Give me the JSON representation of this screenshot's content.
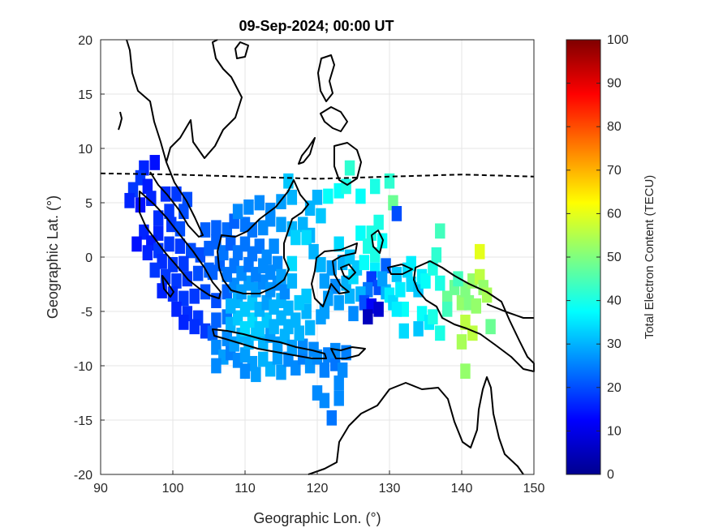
{
  "chart_data": {
    "type": "heatmap",
    "title": "09-Sep-2024; 00:00 UT",
    "xlabel": "Geographic Lon. (°)",
    "ylabel": "Geographic Lat. (°)",
    "xlim": [
      90,
      150
    ],
    "ylim": [
      -20,
      20
    ],
    "xticks": [
      "90",
      "100",
      "110",
      "120",
      "130",
      "140",
      "150"
    ],
    "yticks": [
      "20",
      "15",
      "10",
      "5",
      "0",
      "-5",
      "-10",
      "-15",
      "-20"
    ],
    "grid": true,
    "colorbar": {
      "label": "Total Electron Content (TECU)",
      "range": [
        0,
        100
      ],
      "colormap": "jet",
      "ticks": [
        "0",
        "10",
        "20",
        "30",
        "40",
        "50",
        "60",
        "70",
        "80",
        "90",
        "100"
      ]
    },
    "magnetic_equator_lat_approx": [
      [
        90,
        7.7
      ],
      [
        100,
        7.6
      ],
      [
        110,
        7.4
      ],
      [
        120,
        7.2
      ],
      [
        130,
        7.4
      ],
      [
        140,
        7.6
      ],
      [
        150,
        7.4
      ]
    ],
    "points": [
      [
        96,
        8.2,
        16
      ],
      [
        97.5,
        8.7,
        14
      ],
      [
        95.5,
        7.3,
        18
      ],
      [
        94.5,
        6.2,
        18
      ],
      [
        96.5,
        6.5,
        15
      ],
      [
        94,
        5.2,
        16
      ],
      [
        95.5,
        4.8,
        14
      ],
      [
        97,
        5.4,
        16
      ],
      [
        99,
        5.8,
        17
      ],
      [
        100.5,
        5.8,
        18
      ],
      [
        102,
        5.3,
        20
      ],
      [
        99.5,
        4.2,
        18
      ],
      [
        101.5,
        4.2,
        20
      ],
      [
        98,
        3.6,
        17
      ],
      [
        99.8,
        3.0,
        18
      ],
      [
        101,
        2.6,
        20
      ],
      [
        96,
        2.3,
        16
      ],
      [
        98,
        2.2,
        16
      ],
      [
        97,
        1.3,
        15
      ],
      [
        95,
        1.2,
        14
      ],
      [
        96.5,
        0.4,
        16
      ],
      [
        98,
        0.6,
        18
      ],
      [
        99.5,
        1.2,
        18
      ],
      [
        101,
        1.0,
        18
      ],
      [
        102.5,
        0.6,
        20
      ],
      [
        103.8,
        0.2,
        20
      ],
      [
        98.5,
        -0.4,
        17
      ],
      [
        100,
        -0.7,
        18
      ],
      [
        101.5,
        -0.6,
        18
      ],
      [
        97.5,
        -1.2,
        18
      ],
      [
        99,
        -1.8,
        18
      ],
      [
        100.5,
        -2.2,
        18
      ],
      [
        102,
        -2.0,
        18
      ],
      [
        103.5,
        -1.5,
        20
      ],
      [
        105,
        -1.2,
        22
      ],
      [
        98.5,
        -3.1,
        16
      ],
      [
        100,
        -3.4,
        17
      ],
      [
        101.5,
        -3.8,
        18
      ],
      [
        103,
        -3.6,
        18
      ],
      [
        104.5,
        -3.2,
        20
      ],
      [
        100.5,
        -4.8,
        16
      ],
      [
        102,
        -5.2,
        17
      ],
      [
        103.5,
        -5.6,
        18
      ],
      [
        101.5,
        -6.0,
        16
      ],
      [
        103,
        -6.4,
        17
      ],
      [
        104.5,
        -6.8,
        18
      ],
      [
        106,
        -4.0,
        20
      ],
      [
        107.5,
        -3.2,
        22
      ],
      [
        106,
        -5.8,
        22
      ],
      [
        107.5,
        -5.5,
        24
      ],
      [
        105.5,
        -7.0,
        22
      ],
      [
        106,
        -8.3,
        26
      ],
      [
        107,
        -9.2,
        28
      ],
      [
        106,
        -10,
        26
      ],
      [
        108,
        -8.8,
        25
      ],
      [
        109,
        -9.5,
        26
      ],
      [
        110,
        -9.0,
        28
      ],
      [
        111,
        -9.8,
        28
      ],
      [
        110,
        -10.5,
        26
      ],
      [
        111.5,
        -10.8,
        28
      ],
      [
        112.5,
        -9.4,
        30
      ],
      [
        113.5,
        -10.3,
        30
      ],
      [
        114.5,
        -9.2,
        28
      ],
      [
        115,
        -10.6,
        28
      ],
      [
        116,
        -9.4,
        26
      ],
      [
        117,
        -10.2,
        26
      ],
      [
        118,
        -9.2,
        25
      ],
      [
        119,
        -10.0,
        27
      ],
      [
        120,
        -9.2,
        26
      ],
      [
        121,
        -10.4,
        25
      ],
      [
        121.5,
        -9.0,
        25
      ],
      [
        122.5,
        -9.8,
        24
      ],
      [
        123.5,
        -10.4,
        26
      ],
      [
        122.5,
        -8.6,
        26
      ],
      [
        124,
        -8.8,
        25
      ],
      [
        118,
        -8.2,
        26
      ],
      [
        119.5,
        -8.5,
        26
      ],
      [
        120,
        -12.5,
        26
      ],
      [
        121,
        -13.2,
        26
      ],
      [
        123,
        -13,
        26
      ],
      [
        122,
        -14.8,
        24
      ],
      [
        123,
        -11.6,
        26
      ],
      [
        107.5,
        -7.5,
        26
      ],
      [
        108.5,
        -8.0,
        28
      ],
      [
        109.5,
        -7.2,
        30
      ],
      [
        110.5,
        -7.8,
        30
      ],
      [
        111.5,
        -7.0,
        32
      ],
      [
        112.5,
        -7.8,
        30
      ],
      [
        113.5,
        -7.2,
        28
      ],
      [
        114.5,
        -8.0,
        28
      ],
      [
        115.5,
        -7.3,
        30
      ],
      [
        116.5,
        -8.3,
        28
      ],
      [
        117.5,
        -7.0,
        30
      ],
      [
        108,
        -6.2,
        30
      ],
      [
        109,
        -5.6,
        32
      ],
      [
        110,
        -6.6,
        34
      ],
      [
        111,
        -5.8,
        34
      ],
      [
        112,
        -6.6,
        32
      ],
      [
        113,
        -5.8,
        32
      ],
      [
        114,
        -6.4,
        30
      ],
      [
        115,
        -5.6,
        30
      ],
      [
        116,
        -6.4,
        30
      ],
      [
        117,
        -5.8,
        30
      ],
      [
        118.5,
        -5.0,
        30
      ],
      [
        119,
        -6.5,
        30
      ],
      [
        120.5,
        -5.5,
        28
      ],
      [
        108,
        -4.5,
        30
      ],
      [
        109,
        -4.0,
        30
      ],
      [
        110,
        -4.8,
        32
      ],
      [
        111,
        -4.2,
        32
      ],
      [
        112,
        -4.8,
        30
      ],
      [
        113,
        -4.2,
        28
      ],
      [
        114,
        -4.6,
        30
      ],
      [
        115,
        -4.0,
        30
      ],
      [
        116,
        -4.7,
        30
      ],
      [
        117.5,
        -4.2,
        32
      ],
      [
        118.5,
        -3.6,
        32
      ],
      [
        108.5,
        -2.6,
        26
      ],
      [
        109.5,
        -3.2,
        28
      ],
      [
        110.5,
        -2.4,
        28
      ],
      [
        111.5,
        -3.0,
        28
      ],
      [
        112.5,
        -2.3,
        26
      ],
      [
        113.5,
        -3.0,
        27
      ],
      [
        114.5,
        -2.4,
        26
      ],
      [
        115.5,
        -3.2,
        26
      ],
      [
        116.5,
        -2.2,
        30
      ],
      [
        105.5,
        -1.4,
        22
      ],
      [
        106.5,
        -0.6,
        22
      ],
      [
        107.5,
        -1.6,
        24
      ],
      [
        108.5,
        -0.8,
        24
      ],
      [
        109.5,
        -1.5,
        26
      ],
      [
        110.5,
        -0.7,
        24
      ],
      [
        111.5,
        -1.6,
        25
      ],
      [
        112.5,
        -0.8,
        26
      ],
      [
        113.5,
        -1.4,
        26
      ],
      [
        114.5,
        -0.6,
        26
      ],
      [
        115,
        -1.8,
        28
      ],
      [
        105,
        0.8,
        22
      ],
      [
        106,
        1.4,
        22
      ],
      [
        107,
        0.4,
        24
      ],
      [
        108,
        1.3,
        22
      ],
      [
        109,
        0.4,
        24
      ],
      [
        110,
        1.2,
        24
      ],
      [
        111,
        0.3,
        24
      ],
      [
        112,
        1.0,
        24
      ],
      [
        113,
        0.0,
        26
      ],
      [
        114,
        1.0,
        26
      ],
      [
        104.5,
        2.5,
        22
      ],
      [
        106,
        2.7,
        22
      ],
      [
        107.5,
        2.5,
        23
      ],
      [
        108.5,
        3.3,
        22
      ],
      [
        110,
        3.0,
        24
      ],
      [
        111,
        2.5,
        24
      ],
      [
        112.5,
        2.7,
        26
      ],
      [
        113.5,
        3.5,
        26
      ],
      [
        115,
        3.0,
        28
      ],
      [
        116.5,
        2.6,
        30
      ],
      [
        118,
        3.0,
        30
      ],
      [
        119,
        2.0,
        30
      ],
      [
        109,
        4.2,
        26
      ],
      [
        110.5,
        4.6,
        26
      ],
      [
        112,
        5.0,
        26
      ],
      [
        113.5,
        4.3,
        26
      ],
      [
        115,
        5.1,
        28
      ],
      [
        116.5,
        5.5,
        30
      ],
      [
        116,
        7.0,
        32
      ],
      [
        120,
        5.5,
        30
      ],
      [
        119,
        4.5,
        30
      ],
      [
        120.5,
        3.8,
        32
      ],
      [
        118.5,
        1.8,
        34
      ],
      [
        117,
        1.8,
        33
      ],
      [
        116.5,
        -0.6,
        34
      ],
      [
        119.5,
        0.5,
        30
      ],
      [
        120.5,
        -0.7,
        30
      ],
      [
        122,
        -1.0,
        28
      ],
      [
        123.5,
        -0.5,
        30
      ],
      [
        124.5,
        0.0,
        32
      ],
      [
        123,
        1.2,
        34
      ],
      [
        121,
        -2.2,
        28
      ],
      [
        122.5,
        -2.7,
        26
      ],
      [
        124,
        -2.4,
        30
      ],
      [
        125,
        -1.8,
        34
      ],
      [
        121.5,
        -3.8,
        28
      ],
      [
        123,
        -4.2,
        28
      ],
      [
        124.5,
        -3.6,
        30
      ],
      [
        125,
        -5.2,
        26
      ],
      [
        121,
        -5.0,
        28
      ],
      [
        125.5,
        -1.0,
        32
      ],
      [
        121.5,
        5.6,
        38
      ],
      [
        123,
        6.1,
        38
      ],
      [
        124,
        6.5,
        40
      ],
      [
        124.5,
        8.2,
        42
      ],
      [
        126,
        5.6,
        38
      ],
      [
        128,
        6.5,
        40
      ],
      [
        130,
        7.0,
        42
      ],
      [
        130.5,
        5.0,
        48
      ],
      [
        131,
        4.0,
        20
      ],
      [
        128.5,
        3.2,
        40
      ],
      [
        127.5,
        2.2,
        40
      ],
      [
        126,
        2.2,
        38
      ],
      [
        129,
        1.5,
        38
      ],
      [
        127,
        1.0,
        40
      ],
      [
        128,
        0.2,
        40
      ],
      [
        126.5,
        -0.5,
        38
      ],
      [
        128,
        -1.2,
        36
      ],
      [
        129.5,
        -0.8,
        22
      ],
      [
        127.5,
        -2.0,
        18
      ],
      [
        128.5,
        -2.8,
        20
      ],
      [
        127,
        -3.0,
        24
      ],
      [
        126,
        -3.4,
        30
      ],
      [
        126.5,
        -4.2,
        20
      ],
      [
        127.5,
        -4.5,
        12
      ],
      [
        128.5,
        -4.8,
        8
      ],
      [
        127,
        -5.5,
        6
      ],
      [
        129.5,
        -3.2,
        30
      ],
      [
        129,
        -2.0,
        28
      ],
      [
        130,
        -3.5,
        36
      ],
      [
        130.5,
        -4.2,
        34
      ],
      [
        131.5,
        -3.0,
        36
      ],
      [
        131,
        -1.6,
        32
      ],
      [
        132.5,
        -1.2,
        34
      ],
      [
        132,
        -4.8,
        38
      ],
      [
        133,
        -2.5,
        34
      ],
      [
        134,
        -3.0,
        32
      ],
      [
        134.5,
        -1.8,
        36
      ],
      [
        133,
        -0.6,
        36
      ],
      [
        134.5,
        -5.2,
        38
      ],
      [
        135.5,
        -6.0,
        36
      ],
      [
        134,
        -6.6,
        32
      ],
      [
        132,
        -6.8,
        34
      ],
      [
        131,
        -4.8,
        36
      ],
      [
        135,
        -2.2,
        38
      ],
      [
        136,
        -1.0,
        40
      ],
      [
        137,
        -2.4,
        40
      ],
      [
        136.5,
        0.2,
        42
      ],
      [
        137,
        2.4,
        44
      ],
      [
        138,
        -3.8,
        48
      ],
      [
        139,
        -2.8,
        48
      ],
      [
        140,
        -4.2,
        52
      ],
      [
        140.5,
        -3.0,
        50
      ],
      [
        141.5,
        -2.2,
        52
      ],
      [
        142.5,
        -1.8,
        56
      ],
      [
        142.5,
        0.5,
        60
      ],
      [
        143,
        -2.8,
        52
      ],
      [
        143.5,
        -3.5,
        54
      ],
      [
        141,
        -4.2,
        50
      ],
      [
        142,
        -4.5,
        52
      ],
      [
        140.5,
        -6.0,
        56
      ],
      [
        141.5,
        -7.0,
        56
      ],
      [
        140,
        -7.8,
        54
      ],
      [
        144,
        -6.4,
        48
      ],
      [
        140.5,
        -10.5,
        52
      ],
      [
        137,
        -7.0,
        40
      ],
      [
        138,
        -4.8,
        44
      ],
      [
        136,
        -5.5,
        40
      ],
      [
        139.5,
        -2.0,
        44
      ]
    ]
  }
}
